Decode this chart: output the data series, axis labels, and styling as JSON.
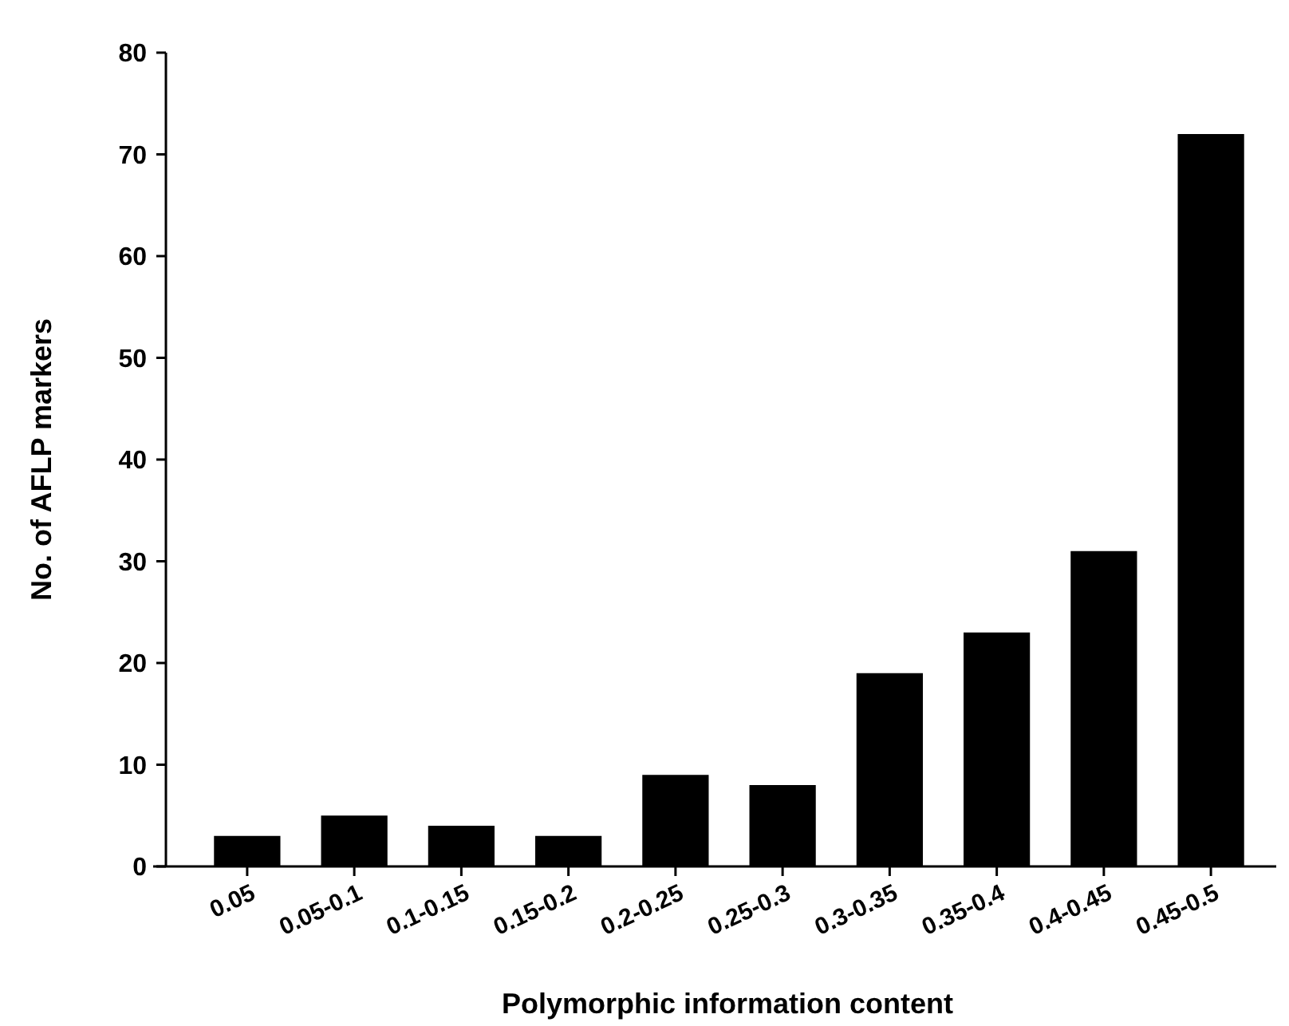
{
  "chart_data": {
    "type": "bar",
    "xlabel": "Polymorphic information content",
    "ylabel": "No. of AFLP markers",
    "categories": [
      "0.05",
      "0.05-0.1",
      "0.1-0.15",
      "0.15-0.2",
      "0.2-0.25",
      "0.25-0.3",
      "0.3-0.35",
      "0.35-0.4",
      "0.4-0.45",
      "0.45-0.5"
    ],
    "values": [
      3,
      5,
      4,
      3,
      9,
      8,
      19,
      23,
      31,
      72
    ],
    "color": "#000000",
    "ylim": [
      0,
      80
    ],
    "yticks": [
      0,
      10,
      20,
      30,
      40,
      50,
      60,
      70,
      80
    ],
    "grid": false
  }
}
